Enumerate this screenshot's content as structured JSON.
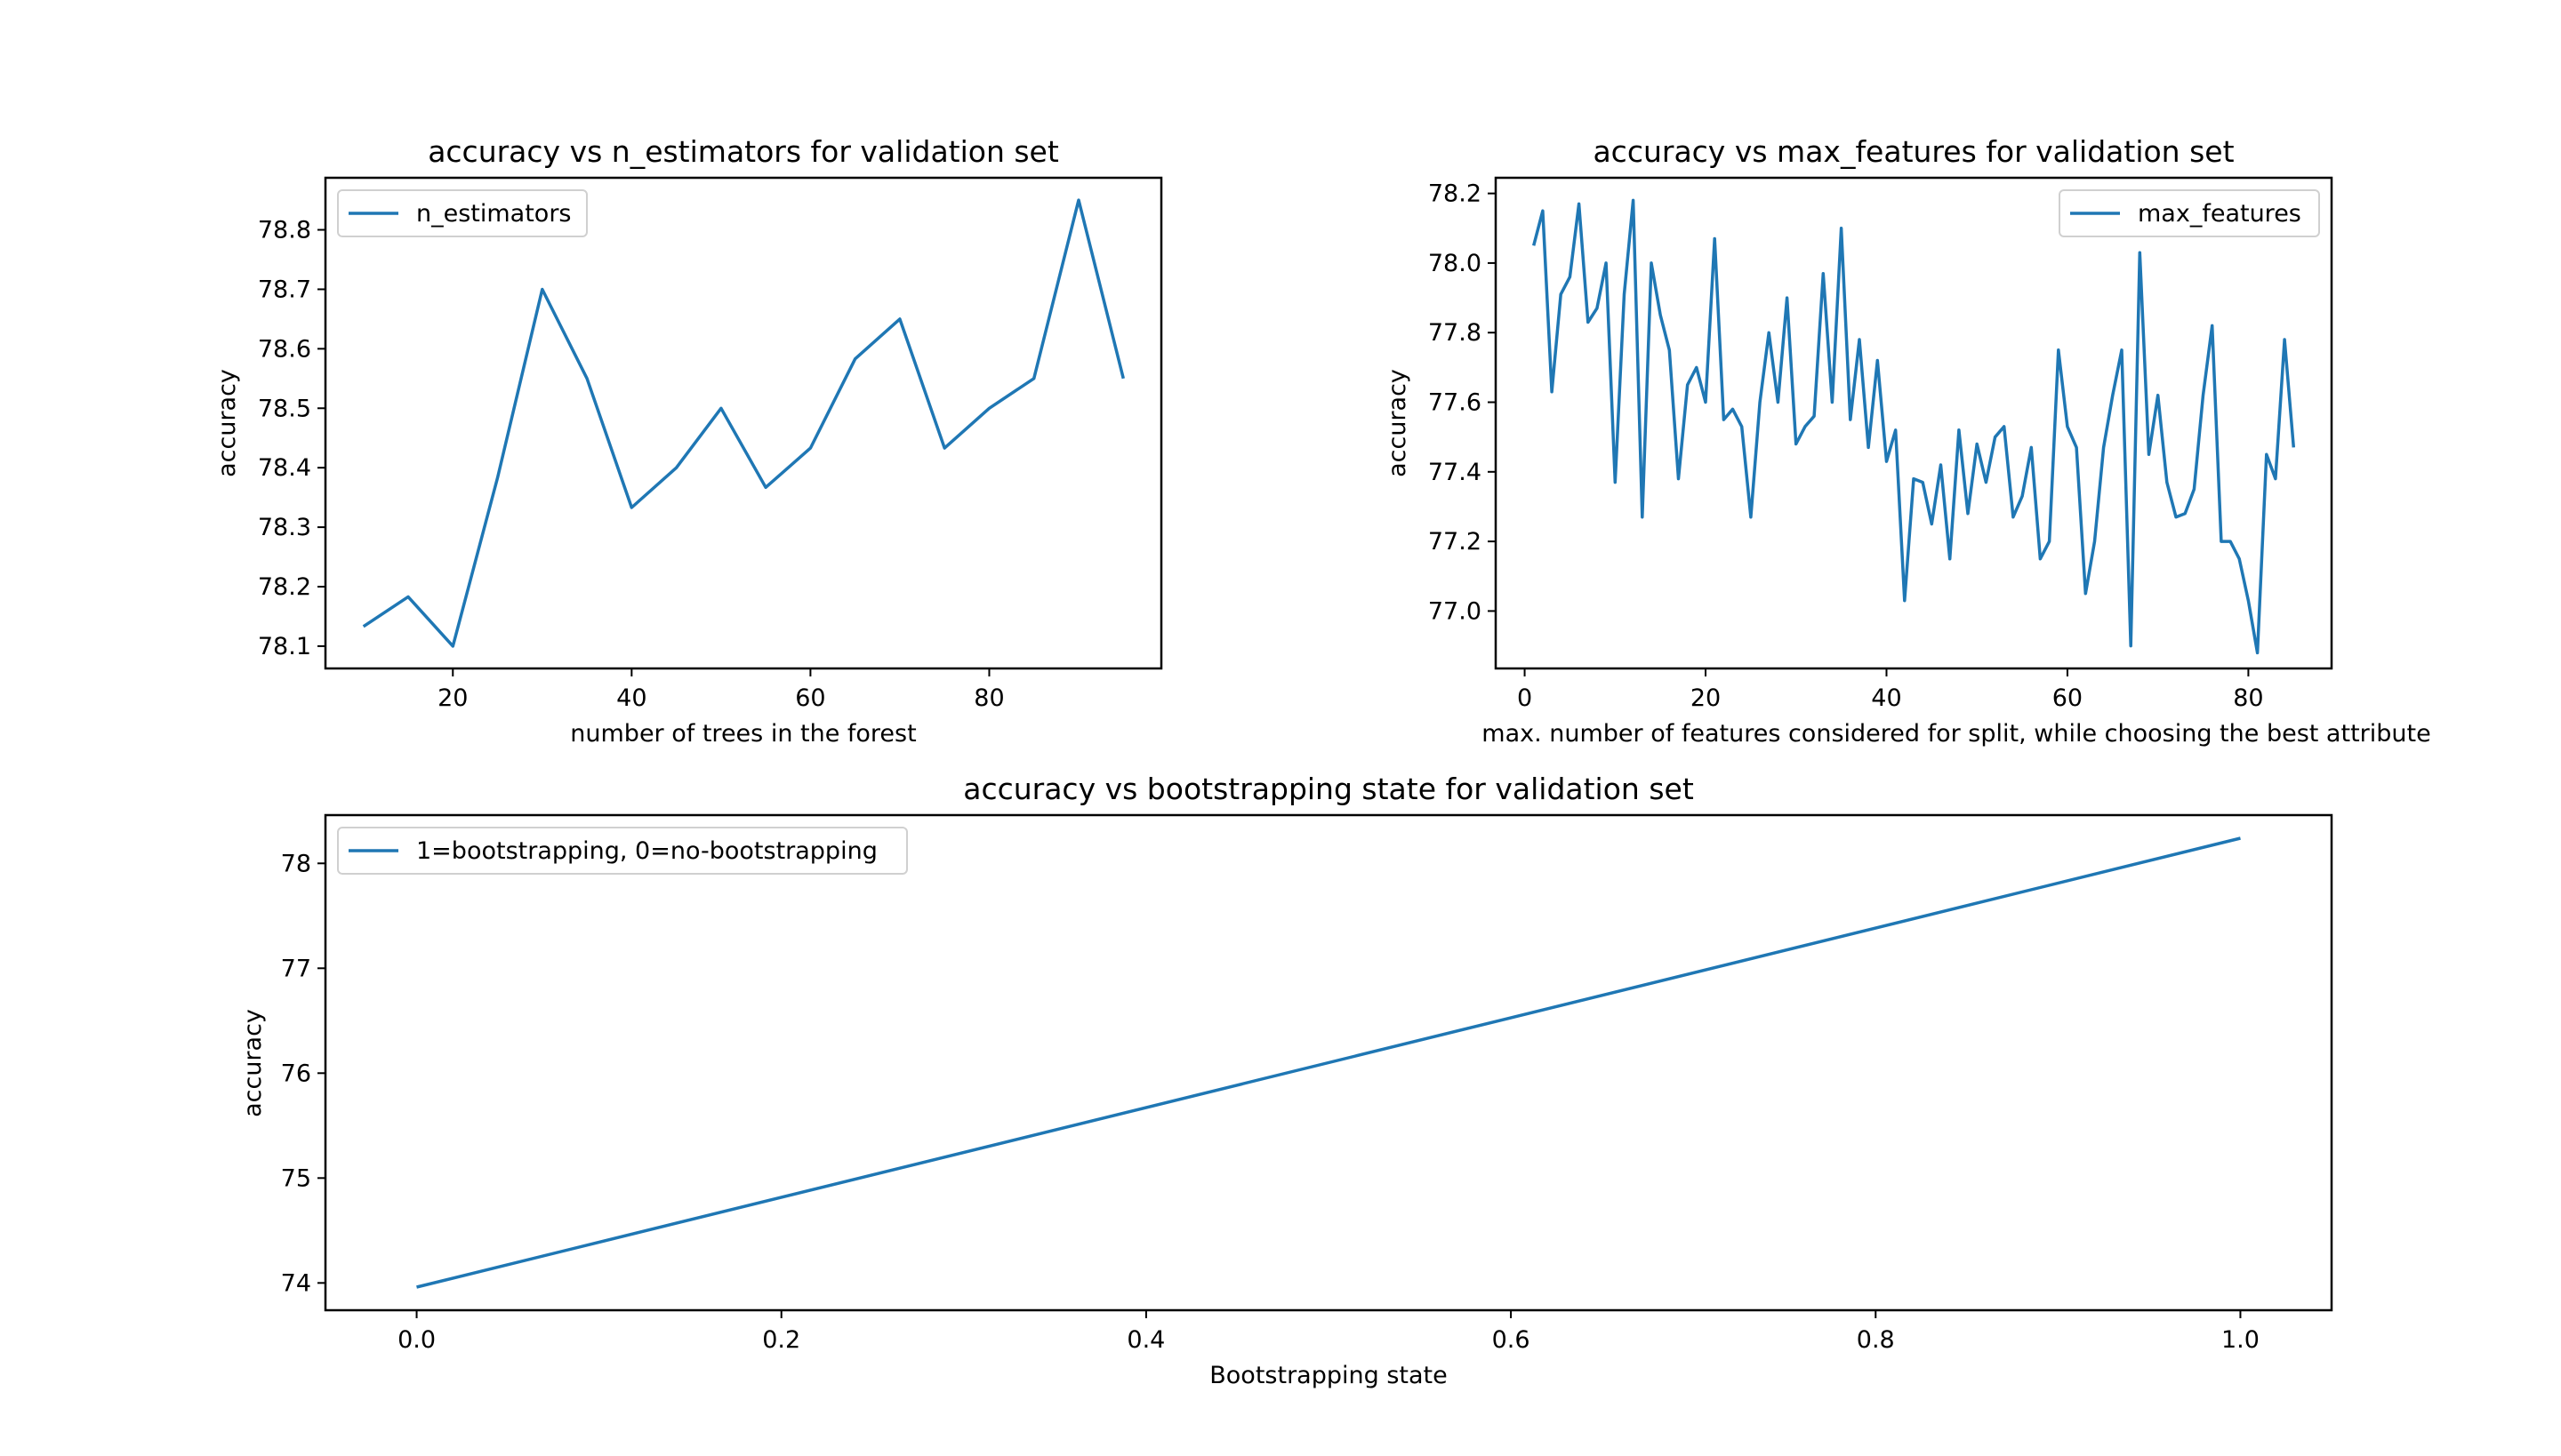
{
  "chart_data": [
    {
      "type": "line",
      "title": "accuracy vs n_estimators for validation set",
      "xlabel": "number of trees in the forest",
      "ylabel": "accuracy",
      "xlim": [
        5.75,
        99.25
      ],
      "ylim": [
        78.0625,
        78.8875
      ],
      "xticks": [
        20,
        40,
        60,
        80
      ],
      "yticks": [
        78.1,
        78.2,
        78.3,
        78.4,
        78.5,
        78.6,
        78.7,
        78.8
      ],
      "legend_position": "upper-left",
      "series": [
        {
          "name": "n_estimators",
          "color": "#1f77b4",
          "x": [
            10,
            15,
            20,
            25,
            30,
            35,
            40,
            45,
            50,
            55,
            60,
            65,
            70,
            75,
            80,
            85,
            90,
            95
          ],
          "y": [
            78.133,
            78.183,
            78.1,
            78.383,
            78.7,
            78.55,
            78.333,
            78.4,
            78.5,
            78.367,
            78.433,
            78.583,
            78.65,
            78.433,
            78.5,
            78.55,
            78.85,
            78.55
          ]
        }
      ]
    },
    {
      "type": "line",
      "title": "accuracy vs max_features for validation set",
      "xlabel": "max. number of features considered for split, while choosing the best attribute",
      "ylabel": "accuracy",
      "xlim": [
        -3.2,
        89.2
      ],
      "ylim": [
        76.835,
        78.245
      ],
      "xticks": [
        0,
        20,
        40,
        60,
        80
      ],
      "yticks": [
        77.0,
        77.2,
        77.4,
        77.6,
        77.8,
        78.0,
        78.2
      ],
      "legend_position": "upper-right",
      "series": [
        {
          "name": "max_features",
          "color": "#1f77b4",
          "x": [
            1,
            2,
            3,
            4,
            5,
            6,
            7,
            8,
            9,
            10,
            11,
            12,
            13,
            14,
            15,
            16,
            17,
            18,
            19,
            20,
            21,
            22,
            23,
            24,
            25,
            26,
            27,
            28,
            29,
            30,
            31,
            32,
            33,
            34,
            35,
            36,
            37,
            38,
            39,
            40,
            41,
            42,
            43,
            44,
            45,
            46,
            47,
            48,
            49,
            50,
            51,
            52,
            53,
            54,
            55,
            56,
            57,
            58,
            59,
            60,
            61,
            62,
            63,
            64,
            65,
            66,
            67,
            68,
            69,
            70,
            71,
            72,
            73,
            74,
            75,
            76,
            77,
            78,
            79,
            80,
            81,
            82,
            83,
            84,
            85
          ],
          "y": [
            78.05,
            78.15,
            77.63,
            77.91,
            77.96,
            78.17,
            77.83,
            77.87,
            78.0,
            77.37,
            77.91,
            78.18,
            77.27,
            78.0,
            77.85,
            77.75,
            77.38,
            77.65,
            77.7,
            77.6,
            78.07,
            77.55,
            77.58,
            77.53,
            77.27,
            77.6,
            77.8,
            77.6,
            77.9,
            77.48,
            77.53,
            77.56,
            77.97,
            77.6,
            78.1,
            77.55,
            77.78,
            77.47,
            77.72,
            77.43,
            77.52,
            77.03,
            77.38,
            77.37,
            77.25,
            77.42,
            77.15,
            77.52,
            77.28,
            77.48,
            77.37,
            77.5,
            77.53,
            77.27,
            77.33,
            77.47,
            77.15,
            77.2,
            77.75,
            77.53,
            77.47,
            77.05,
            77.2,
            77.47,
            77.62,
            77.75,
            76.9,
            78.03,
            77.45,
            77.62,
            77.37,
            77.27,
            77.28,
            77.35,
            77.62,
            77.82,
            77.2,
            77.2,
            77.15,
            77.03,
            76.88,
            77.45,
            77.38,
            77.78,
            77.47
          ]
        }
      ]
    },
    {
      "type": "line",
      "title": "accuracy vs bootstrapping state for validation set",
      "xlabel": "Bootstrapping state",
      "ylabel": "accuracy",
      "xlim": [
        -0.05,
        1.05
      ],
      "ylim": [
        73.74,
        78.46
      ],
      "xticks": [
        0.0,
        0.2,
        0.4,
        0.6,
        0.8,
        1.0
      ],
      "yticks": [
        74,
        75,
        76,
        77,
        78
      ],
      "legend_position": "upper-left",
      "series": [
        {
          "name": "1=bootstrapping, 0=no-bootstrapping",
          "color": "#1f77b4",
          "x": [
            0,
            1
          ],
          "y": [
            73.96,
            78.24
          ]
        }
      ]
    }
  ]
}
